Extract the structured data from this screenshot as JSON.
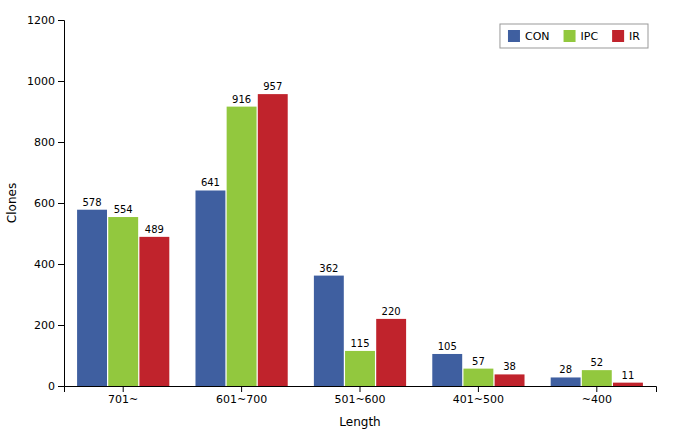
{
  "chart_data": {
    "type": "bar",
    "xlabel": "Length",
    "ylabel": "Clones",
    "categories": [
      "701~",
      "601~700",
      "501~600",
      "401~500",
      "~400"
    ],
    "series": [
      {
        "name": "CON",
        "color": "#3F5FA0",
        "values": [
          578,
          641,
          362,
          105,
          28
        ]
      },
      {
        "name": "IPC",
        "color": "#92C83E",
        "values": [
          554,
          916,
          115,
          57,
          52
        ]
      },
      {
        "name": "IR",
        "color": "#C0232C",
        "values": [
          489,
          957,
          220,
          38,
          11
        ]
      }
    ],
    "ylim": [
      0,
      1200
    ],
    "yticks": [
      0,
      200,
      400,
      600,
      800,
      1000,
      1200
    ],
    "grid": false,
    "legend": "upper right",
    "data_labels": true
  }
}
